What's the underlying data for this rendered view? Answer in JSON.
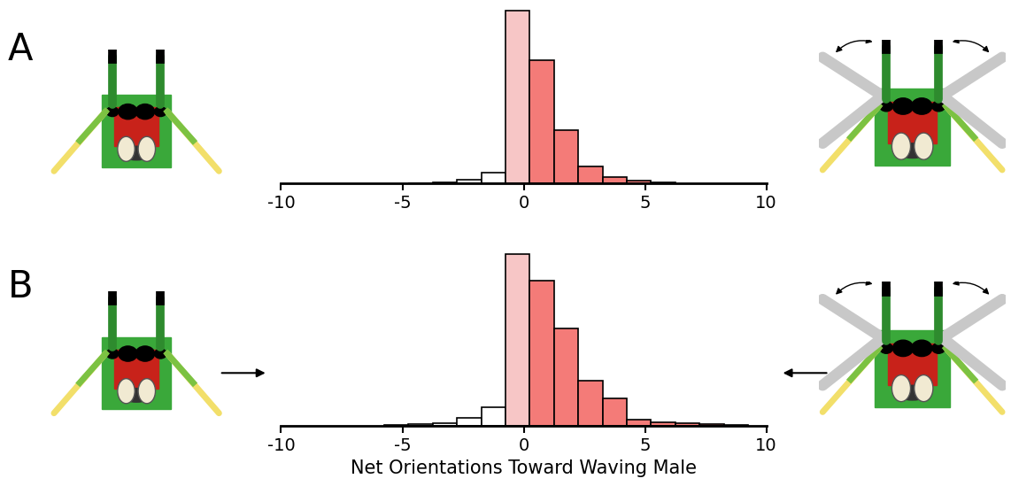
{
  "chart_data": [
    {
      "type": "histogram",
      "title": "A",
      "bins": [
        -4.75,
        -3.75,
        -2.75,
        -1.75,
        -0.75,
        0.25,
        1.25,
        2.25,
        3.25,
        4.25,
        5.25,
        6.25
      ],
      "counts": [
        0,
        1,
        4,
        12,
        197,
        140,
        61,
        19,
        7,
        3,
        1
      ],
      "colors": [
        "#ffffff",
        "#ffffff",
        "#ffffff",
        "#ffffff",
        "#f7c6c6",
        "#f47b78",
        "#f47b78",
        "#f47b78",
        "#f47b78",
        "#f47b78",
        "#f47b78"
      ],
      "xlim": [
        -10,
        10
      ],
      "xticks": [
        -10,
        -5,
        0,
        5,
        10
      ],
      "ylim": [
        0,
        200
      ],
      "tick_labels": "x"
    },
    {
      "type": "histogram",
      "title": "B",
      "x_label": "Net Orientations Toward Waving Male",
      "bins": [
        -5.75,
        -4.75,
        -3.75,
        -2.75,
        -1.75,
        -0.75,
        0.25,
        1.25,
        2.25,
        3.25,
        4.25,
        5.25,
        6.25,
        7.25,
        8.25,
        9.25
      ],
      "counts": [
        1,
        2,
        3,
        9,
        21,
        196,
        166,
        111,
        51,
        31,
        7,
        4,
        3,
        2,
        1
      ],
      "colors": [
        "#ffffff",
        "#ffffff",
        "#ffffff",
        "#ffffff",
        "#ffffff",
        "#f7c6c6",
        "#f47b78",
        "#f47b78",
        "#f47b78",
        "#f47b78",
        "#f47b78",
        "#f47b78",
        "#f47b78",
        "#f47b78",
        "#f47b78"
      ],
      "xlim": [
        -10,
        10
      ],
      "xticks": [
        -10,
        -5,
        0,
        5,
        10
      ],
      "ylim": [
        0,
        200
      ],
      "tick_labels": "x"
    }
  ]
}
